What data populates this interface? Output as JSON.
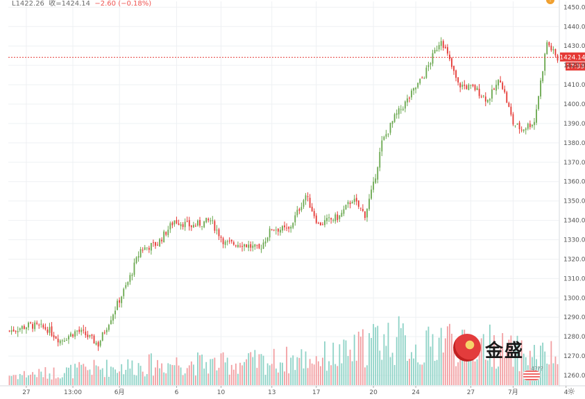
{
  "ohlc_line": {
    "low": "L1422.26",
    "close": "收=1424.14",
    "change": "−2.60 (−0.18%)"
  },
  "alert_icon": "!",
  "logo": {
    "text": "金盛"
  },
  "flag_badge": "4???",
  "gear_icon": "☼",
  "colors": {
    "up": "#6aa84f",
    "down": "#e53935",
    "vol_up": "#8fd3c7",
    "vol_down": "#f2a0a3",
    "grid": "#eef0f3",
    "axis_text": "#555555",
    "price_line": "#e53935"
  },
  "chart_data": {
    "type": "candlestick",
    "ylim": [
      1255,
      1453
    ],
    "y_ticks": [
      1260,
      1270,
      1280,
      1290,
      1300,
      1310,
      1320,
      1330,
      1340,
      1350,
      1360,
      1370,
      1380,
      1390,
      1400,
      1410,
      1420,
      1430,
      1440,
      1450
    ],
    "y_tick_labels": [
      "1260.00",
      "1270.00",
      "1280.00",
      "1290.00",
      "1300.00",
      "1310.00",
      "1320.00",
      "1330.00",
      "1340.00",
      "1350.00",
      "1360.00",
      "1370.00",
      "1380.00",
      "1390.00",
      "1400.00",
      "1410.00",
      "1420.00",
      "1430.00",
      "1440.00",
      "1450.00"
    ],
    "x_ticks": [
      {
        "label": "27",
        "index": 8
      },
      {
        "label": "13:00",
        "index": 30
      },
      {
        "label": "6月",
        "index": 52
      },
      {
        "label": "6",
        "index": 79
      },
      {
        "label": "10",
        "index": 100
      },
      {
        "label": "13",
        "index": 124
      },
      {
        "label": "17",
        "index": 145
      },
      {
        "label": "20",
        "index": 172
      },
      {
        "label": "24",
        "index": 192
      },
      {
        "label": "27",
        "index": 218
      },
      {
        "label": "7月",
        "index": 238
      },
      {
        "label": "4",
        "index": 263
      }
    ],
    "current_price": {
      "value": 1424.14,
      "label": "1424.14",
      "countdown": "17:33"
    },
    "waypoints": [
      [
        0,
        1283
      ],
      [
        10,
        1286
      ],
      [
        18,
        1284
      ],
      [
        24,
        1278
      ],
      [
        32,
        1283
      ],
      [
        36,
        1281
      ],
      [
        42,
        1276
      ],
      [
        48,
        1290
      ],
      [
        56,
        1308
      ],
      [
        62,
        1325
      ],
      [
        70,
        1328
      ],
      [
        78,
        1340
      ],
      [
        86,
        1337
      ],
      [
        95,
        1340
      ],
      [
        102,
        1328
      ],
      [
        110,
        1328
      ],
      [
        118,
        1325
      ],
      [
        124,
        1336
      ],
      [
        132,
        1335
      ],
      [
        140,
        1353
      ],
      [
        146,
        1338
      ],
      [
        156,
        1342
      ],
      [
        162,
        1351
      ],
      [
        168,
        1343
      ],
      [
        172,
        1358
      ],
      [
        176,
        1380
      ],
      [
        182,
        1393
      ],
      [
        188,
        1402
      ],
      [
        196,
        1415
      ],
      [
        204,
        1434
      ],
      [
        212,
        1410
      ],
      [
        220,
        1408
      ],
      [
        226,
        1402
      ],
      [
        232,
        1413
      ],
      [
        238,
        1390
      ],
      [
        242,
        1387
      ],
      [
        248,
        1391
      ],
      [
        254,
        1432
      ],
      [
        259,
        1423
      ]
    ],
    "volume_waypoints": [
      [
        0,
        18
      ],
      [
        20,
        22
      ],
      [
        40,
        30
      ],
      [
        60,
        35
      ],
      [
        80,
        40
      ],
      [
        100,
        38
      ],
      [
        120,
        42
      ],
      [
        140,
        48
      ],
      [
        160,
        55
      ],
      [
        175,
        85
      ],
      [
        185,
        80
      ],
      [
        195,
        60
      ],
      [
        205,
        90
      ],
      [
        215,
        65
      ],
      [
        225,
        75
      ],
      [
        235,
        60
      ],
      [
        245,
        55
      ],
      [
        259,
        50
      ]
    ],
    "bars": 260
  }
}
